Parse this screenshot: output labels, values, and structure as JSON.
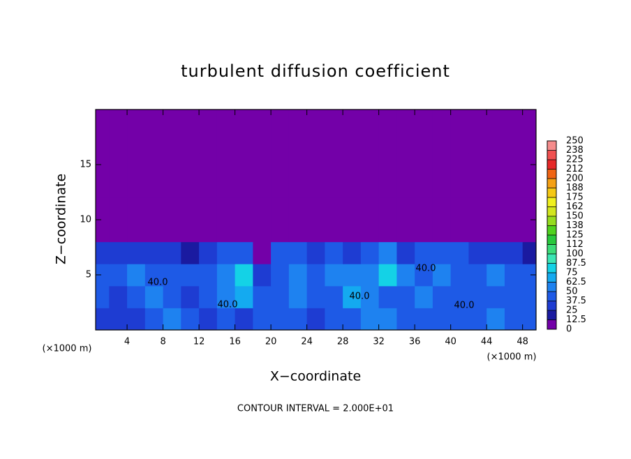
{
  "chart_data": {
    "type": "heatmap",
    "title": "turbulent diffusion coefficient",
    "xlabel": "X−coordinate",
    "ylabel": "Z−coordinate",
    "x_unit_left": "(×1000 m)",
    "x_unit_right": "(×1000 m)",
    "footer": "CONTOUR INTERVAL = 2.000E+01",
    "annotations": [
      "40.0",
      "40.0",
      "40.0",
      "40.0",
      "40.0"
    ],
    "xlim": [
      0.5,
      49.5
    ],
    "ylim": [
      0,
      20
    ],
    "xticks": [
      4,
      8,
      12,
      16,
      20,
      24,
      28,
      32,
      36,
      40,
      44,
      48
    ],
    "yticks": [
      5,
      10,
      15
    ],
    "x_edges": [
      0,
      2,
      4,
      6,
      8,
      10,
      12,
      14,
      16,
      18,
      20,
      22,
      24,
      26,
      28,
      30,
      32,
      34,
      36,
      38,
      40,
      42,
      44,
      46,
      48,
      50
    ],
    "z_edges": [
      0,
      2,
      4,
      6,
      8,
      10,
      12,
      14,
      16,
      18,
      20
    ],
    "z": [
      [
        30,
        37,
        37,
        45,
        50,
        40,
        35,
        40,
        30,
        38,
        45,
        40,
        35,
        40,
        38,
        50,
        55,
        45,
        38,
        40,
        40,
        45,
        50,
        45,
        40
      ],
      [
        40,
        35,
        45,
        50,
        40,
        35,
        38,
        55,
        70,
        40,
        45,
        55,
        38,
        45,
        65,
        50,
        45,
        40,
        50,
        40,
        38,
        42,
        45,
        40,
        38
      ],
      [
        45,
        40,
        50,
        45,
        48,
        40,
        45,
        60,
        75,
        30,
        48,
        55,
        45,
        50,
        55,
        60,
        75,
        50,
        45,
        55,
        40,
        45,
        50,
        42,
        40
      ],
      [
        30,
        35,
        35,
        35,
        30,
        20,
        30,
        40,
        45,
        12,
        40,
        40,
        35,
        40,
        30,
        40,
        50,
        35,
        40,
        40,
        40,
        35,
        30,
        25,
        20
      ],
      [
        0,
        0,
        0,
        0,
        0,
        0,
        0,
        0,
        0,
        0,
        0,
        0,
        0,
        0,
        0,
        0,
        0,
        0,
        0,
        0,
        0,
        0,
        0,
        0,
        0
      ],
      [
        0,
        0,
        0,
        0,
        0,
        0,
        0,
        0,
        0,
        0,
        0,
        0,
        0,
        0,
        0,
        0,
        0,
        0,
        0,
        0,
        0,
        0,
        0,
        0,
        0
      ],
      [
        0,
        0,
        0,
        0,
        0,
        0,
        0,
        0,
        0,
        0,
        0,
        0,
        0,
        0,
        0,
        0,
        0,
        0,
        0,
        0,
        0,
        0,
        0,
        0,
        0
      ],
      [
        0,
        0,
        0,
        0,
        0,
        0,
        0,
        0,
        0,
        0,
        0,
        0,
        0,
        0,
        0,
        0,
        0,
        0,
        0,
        0,
        0,
        0,
        0,
        0,
        0
      ],
      [
        0,
        0,
        0,
        0,
        0,
        0,
        0,
        0,
        0,
        0,
        0,
        0,
        0,
        0,
        0,
        0,
        0,
        0,
        0,
        0,
        0,
        0,
        0,
        0,
        0
      ],
      [
        0,
        0,
        0,
        0,
        0,
        0,
        0,
        0,
        0,
        0,
        0,
        0,
        0,
        0,
        0,
        0,
        0,
        0,
        0,
        0,
        0,
        0,
        0,
        0,
        0
      ]
    ],
    "clim": [
      0,
      250
    ],
    "cticks": [
      0,
      12.5,
      25,
      37.5,
      50,
      62.5,
      75,
      87.5,
      100,
      {
        "value": 112.5,
        "label": "112"
      },
      125,
      {
        "value": 137.5,
        "label": "138"
      },
      150,
      {
        "value": 162.5,
        "label": "162"
      },
      175,
      {
        "value": 187.5,
        "label": "188"
      },
      200,
      {
        "value": 212.5,
        "label": "212"
      },
      225,
      {
        "value": 237.5,
        "label": "238"
      },
      250
    ],
    "colors": [
      "#7300a8",
      "#1a1aa0",
      "#1e3cd2",
      "#1e5ae6",
      "#1e82f0",
      "#14aaf0",
      "#14d2e6",
      "#3ce6b4",
      "#3cdc78",
      "#28c83c",
      "#50d21e",
      "#96dc1e",
      "#d2e61e",
      "#f0f01e",
      "#f5c814",
      "#f5a014",
      "#f06414",
      "#e62828",
      "#f05050",
      "#f58c8c"
    ]
  }
}
